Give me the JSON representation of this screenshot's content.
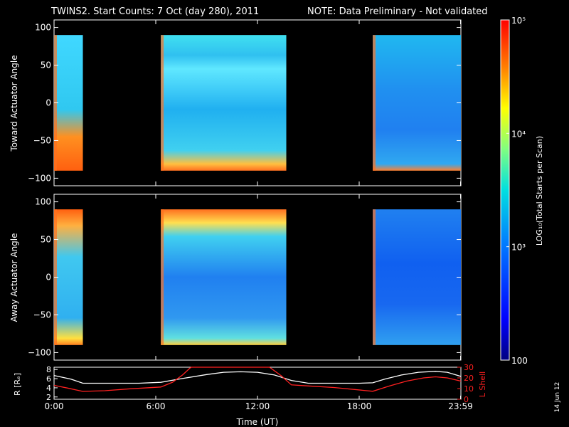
{
  "title": {
    "main": "TWINS2. Start Counts:  7 Oct (day 280), 2011",
    "note": "NOTE: Data Preliminary - Not validated"
  },
  "colors": {
    "note": "#ff2020",
    "lshell": "#ff2020",
    "radius": "#ffffff"
  },
  "side_stamp": "14 Jun 12",
  "chart_data": [
    {
      "type": "heatmap",
      "panel": "toward",
      "ylabel": "Toward Actuator Angle",
      "yticks": [
        "100",
        "50",
        "0",
        "−50",
        "−100"
      ],
      "ytick_values": [
        100,
        50,
        0,
        -50,
        -100
      ],
      "ylim": [
        -110,
        110
      ],
      "xlim_hours": [
        0,
        24
      ],
      "data_angle_range": [
        -90,
        90
      ],
      "segments_hours": [
        [
          0.0,
          1.7
        ],
        [
          6.3,
          13.7
        ],
        [
          18.8,
          24.0
        ]
      ],
      "colorscale": "log10 counts, 100 to 1e5"
    },
    {
      "type": "heatmap",
      "panel": "away",
      "ylabel": "Away Actuator Angle",
      "yticks": [
        "100",
        "50",
        "0",
        "−50",
        "−100"
      ],
      "ytick_values": [
        100,
        50,
        0,
        -50,
        -100
      ],
      "ylim": [
        -110,
        110
      ],
      "xlim_hours": [
        0,
        24
      ],
      "data_angle_range": [
        -90,
        90
      ],
      "segments_hours": [
        [
          0.0,
          1.7
        ],
        [
          6.3,
          13.7
        ],
        [
          18.8,
          24.0
        ]
      ],
      "colorscale": "log10 counts, 100 to 1e5"
    },
    {
      "type": "line",
      "panel": "orbit",
      "xlabel": "Time (UT)",
      "xticks": [
        "0:00",
        "6:00",
        "12:00",
        "18:00",
        "23:59"
      ],
      "xtick_hours": [
        0,
        6,
        12,
        18,
        23.98
      ],
      "ylabel_left": "R [Rₑ]",
      "yticks_left": [
        "8",
        "6",
        "4",
        "2"
      ],
      "ytick_left_values": [
        8,
        6,
        4,
        2
      ],
      "ylim_left": [
        1.5,
        8.5
      ],
      "ylabel_right": "L Shell",
      "yticks_right": [
        "30",
        "20",
        "10",
        "0"
      ],
      "ytick_right_values": [
        30,
        20,
        10,
        0
      ],
      "ylim_right": [
        0,
        30
      ],
      "series": [
        {
          "axis": "left",
          "x": [
            0,
            1,
            1.7,
            2.5,
            4,
            5,
            6.3,
            7.5,
            9,
            10,
            11,
            12,
            13,
            14,
            15,
            16,
            17,
            18,
            18.8,
            19.5,
            20.5,
            21.5,
            22.5,
            23.2,
            24
          ],
          "y": [
            6.7,
            5.9,
            5.0,
            5.0,
            5.0,
            5.0,
            5.2,
            6.0,
            6.9,
            7.4,
            7.5,
            7.4,
            6.8,
            5.6,
            5.0,
            5.0,
            5.0,
            5.0,
            5.1,
            5.9,
            6.8,
            7.4,
            7.6,
            7.4,
            6.5
          ]
        },
        {
          "axis": "right",
          "x": [
            0,
            0.8,
            1.7,
            3,
            4.5,
            6.3,
            7.0,
            7.6,
            8.0,
            8.1,
            12.7,
            12.8,
            13.4,
            14.0,
            15,
            16.5,
            18.8,
            19.8,
            20.8,
            21.8,
            22.5,
            23.2,
            24
          ],
          "y": [
            13,
            10.5,
            7.3,
            8.0,
            9.8,
            11.5,
            16,
            23,
            29,
            30,
            30,
            29,
            22,
            13.5,
            12.5,
            11,
            7.5,
            12.5,
            17,
            20,
            21,
            20,
            17
          ]
        }
      ]
    },
    {
      "type": "colorbar",
      "label": "LOG₁₀(Total Starts per Scan)",
      "ticks": [
        "10⁵",
        "10⁴",
        "10³",
        "100"
      ],
      "tick_values": [
        100000,
        10000,
        1000,
        100
      ],
      "range": [
        100,
        100000
      ]
    }
  ]
}
